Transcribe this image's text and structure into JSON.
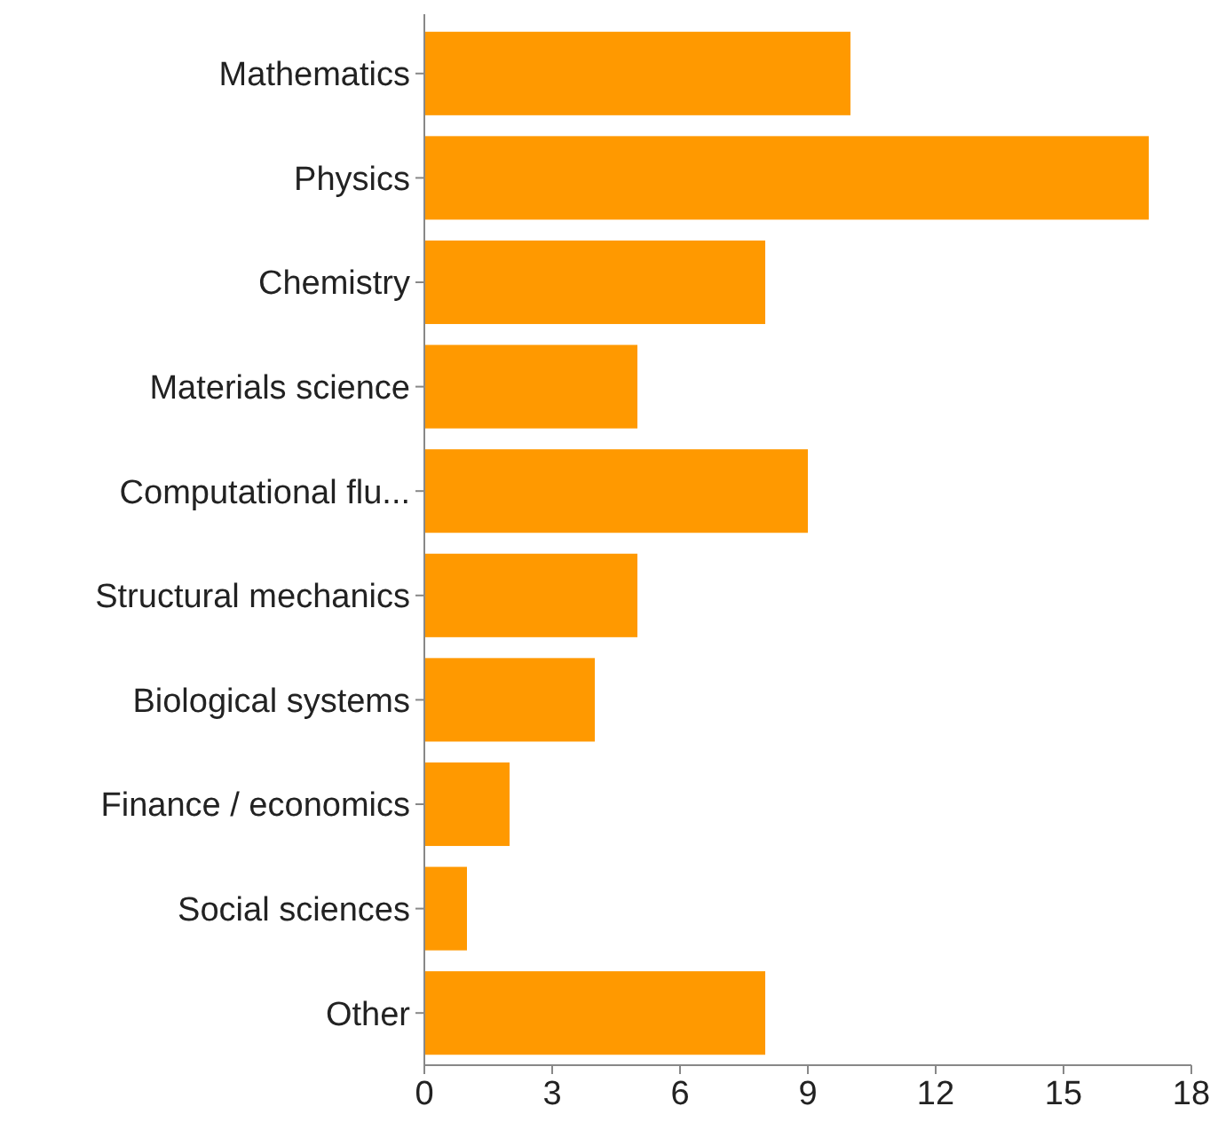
{
  "chart_data": {
    "type": "bar",
    "orientation": "horizontal",
    "categories": [
      "Mathematics",
      "Physics",
      "Chemistry",
      "Materials science",
      "Computational flu...",
      "Structural mechanics",
      "Biological systems",
      "Finance / economics",
      "Social sciences",
      "Other"
    ],
    "values": [
      10,
      17,
      8,
      5,
      9,
      5,
      4,
      2,
      1,
      8
    ],
    "color": "#ff9900",
    "xlim": [
      0,
      18
    ],
    "xticks": [
      0,
      3,
      6,
      9,
      12,
      15,
      18
    ],
    "grid": false
  }
}
